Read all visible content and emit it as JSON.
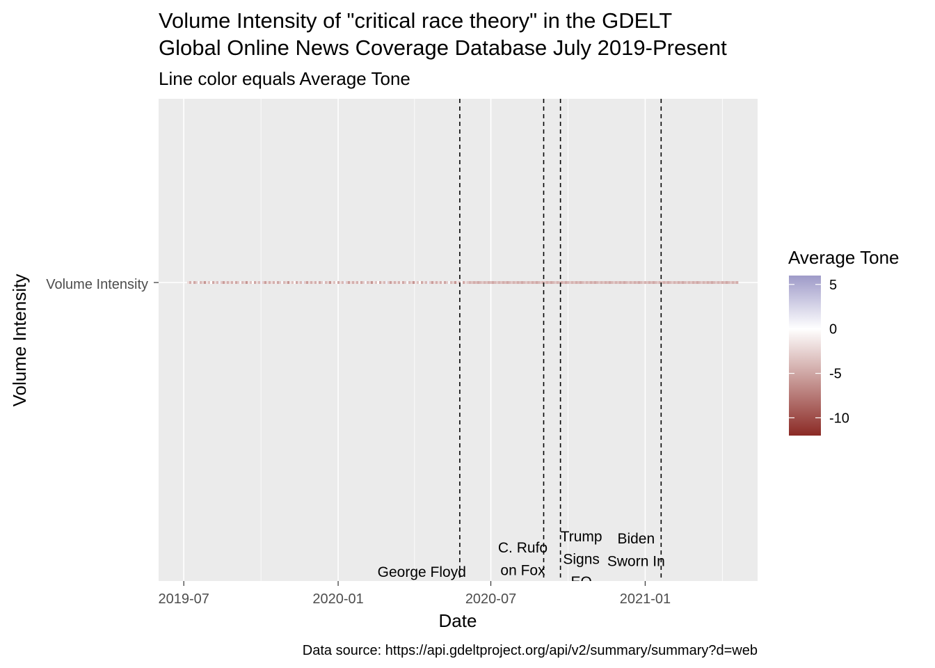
{
  "chart_data": {
    "type": "line",
    "title": "Volume Intensity of \"critical race theory\" in the GDELT Global Online News Coverage Database July 2019-Present",
    "title_lines": [
      "Volume Intensity of \"critical race theory\" in the GDELT",
      "Global Online News Coverage Database July 2019-Present"
    ],
    "subtitle": "Line color equals Average Tone",
    "xlabel": "Date",
    "ylabel": "Volume Intensity",
    "caption": "Data source: https://api.gdeltproject.org/api/v2/summary/summary?d=web",
    "x_range": [
      "2019-06-01",
      "2021-05-15"
    ],
    "x_ticks": [
      {
        "date": "2019-07-01",
        "label": "2019-07"
      },
      {
        "date": "2020-01-01",
        "label": "2020-01"
      },
      {
        "date": "2020-07-01",
        "label": "2020-07"
      },
      {
        "date": "2021-01-01",
        "label": "2021-01"
      }
    ],
    "y_categories": [
      "Volume Intensity"
    ],
    "series": {
      "start": "2019-07-05",
      "end": "2021-04-20",
      "tone_early": [
        -2,
        -4.5,
        -1,
        -5,
        -3,
        0.5,
        -4,
        -2.5,
        -6,
        -1.5,
        -3.5,
        0,
        -5,
        -2,
        -4,
        1,
        -3,
        -5.5,
        -2,
        -4.5
      ],
      "tone_late": -4
    },
    "events": [
      {
        "date": "2020-05-25",
        "lines": [
          "George Floyd"
        ]
      },
      {
        "date": "2020-09-02",
        "lines": [
          "C. Rufo",
          "on Fox"
        ]
      },
      {
        "date": "2020-09-22",
        "lines": [
          "Trump",
          "Signs",
          "EO"
        ]
      },
      {
        "date": "2021-01-20",
        "lines": [
          "Biden",
          "Sworn In"
        ]
      }
    ],
    "legend": {
      "title": "Average Tone",
      "placement": "right",
      "min": -12,
      "max": 6,
      "ticks": [
        5,
        0,
        -5,
        -10
      ],
      "colors": {
        "high": "#9e9ac8",
        "mid": "#ffffff",
        "low": "#8b2a25"
      }
    },
    "grid": true,
    "panel_color": "#ebebeb"
  }
}
